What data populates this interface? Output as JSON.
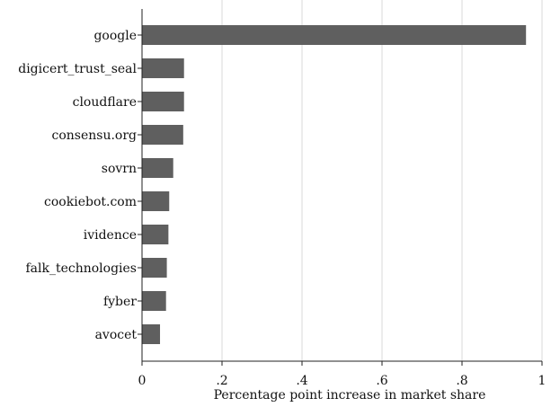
{
  "chart_data": {
    "type": "bar",
    "orientation": "horizontal",
    "categories": [
      "google",
      "digicert_trust_seal",
      "cloudflare",
      "consensu.org",
      "sovrn",
      "cookiebot.com",
      "ividence",
      "falk_technologies",
      "fyber",
      "avocet"
    ],
    "category_labels": [
      "google",
      "digicert_trust_seal",
      "cloudflare",
      "consensu.org",
      "sovrn",
      "cookiebot.com",
      "ividence",
      "falk_technologies",
      "fyber",
      "avocet"
    ],
    "values": [
      0.96,
      0.105,
      0.105,
      0.103,
      0.078,
      0.068,
      0.066,
      0.062,
      0.06,
      0.045
    ],
    "xlabel": "Percentage point increase in market share",
    "ylabel": "",
    "xlim": [
      0,
      1
    ],
    "xticks": [
      0,
      0.2,
      0.4,
      0.6,
      0.8,
      1
    ],
    "xtick_labels": [
      "0",
      ".2",
      ".4",
      ".6",
      ".8",
      "1"
    ],
    "grid": "vertical",
    "colors": {
      "bar": "#5f5f5f",
      "grid": "#d9d9d9",
      "axis": "#222222"
    }
  }
}
